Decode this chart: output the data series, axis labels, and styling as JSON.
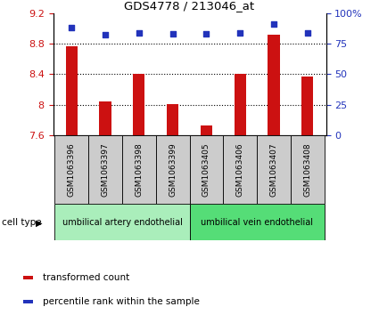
{
  "title": "GDS4778 / 213046_at",
  "samples": [
    "GSM1063396",
    "GSM1063397",
    "GSM1063398",
    "GSM1063399",
    "GSM1063405",
    "GSM1063406",
    "GSM1063407",
    "GSM1063408"
  ],
  "bar_values": [
    8.77,
    8.05,
    8.4,
    8.01,
    7.73,
    8.4,
    8.92,
    8.37
  ],
  "dot_values": [
    88,
    82,
    84,
    83,
    83,
    84,
    91,
    84
  ],
  "ymin": 7.6,
  "ymax": 9.2,
  "yticks_left": [
    7.6,
    8.0,
    8.4,
    8.8,
    9.2
  ],
  "ytick_labels_left": [
    "7.6",
    "8",
    "8.4",
    "8.8",
    "9.2"
  ],
  "yticks_right": [
    0,
    25,
    50,
    75,
    100
  ],
  "ytick_labels_right": [
    "0",
    "25",
    "50",
    "75",
    "100%"
  ],
  "bar_color": "#cc1111",
  "dot_color": "#2233bb",
  "cell_type_groups": [
    {
      "label": "umbilical artery endothelial",
      "start": 0,
      "end": 4,
      "color": "#aaeebb"
    },
    {
      "label": "umbilical vein endothelial",
      "start": 4,
      "end": 8,
      "color": "#55dd77"
    }
  ],
  "cell_type_label": "cell type",
  "legend_bar_label": "transformed count",
  "legend_dot_label": "percentile rank within the sample",
  "tick_color_left": "#cc1111",
  "tick_color_right": "#2233bb",
  "bar_width": 0.35,
  "sample_box_color": "#cccccc",
  "grid_yticks": [
    8.0,
    8.4,
    8.8
  ]
}
